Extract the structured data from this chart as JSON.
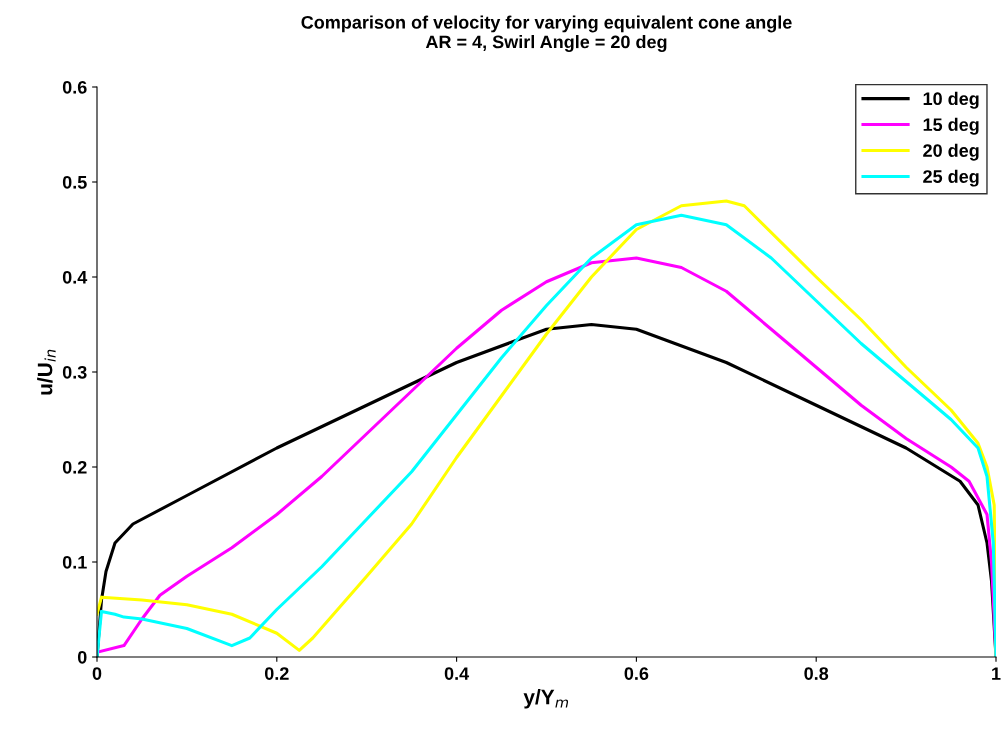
{
  "chart_data": {
    "type": "line",
    "title": "Comparison of velocity for varying equivalent cone angle\nAR = 4, Swirl Angle = 20 deg",
    "xlabel": "y/Y$_{m}$",
    "ylabel": "u/U$_{in}$",
    "xlim": [
      0,
      1
    ],
    "ylim": [
      0,
      0.6
    ],
    "xticks": [
      0,
      0.2,
      0.4,
      0.6,
      0.8,
      1
    ],
    "yticks": [
      0,
      0.1,
      0.2,
      0.3,
      0.4,
      0.5,
      0.6
    ],
    "grid": false,
    "legend": "top right",
    "marker": "none",
    "line_style": "solid",
    "series": [
      {
        "name": "10 deg",
        "color": "#000000",
        "x": [
          0,
          0.005,
          0.01,
          0.02,
          0.04,
          0.1,
          0.2,
          0.3,
          0.4,
          0.5,
          0.55,
          0.6,
          0.7,
          0.8,
          0.9,
          0.96,
          0.98,
          0.99,
          0.995,
          1.0
        ],
        "values": [
          0,
          0.06,
          0.09,
          0.12,
          0.14,
          0.17,
          0.22,
          0.265,
          0.31,
          0.345,
          0.35,
          0.345,
          0.31,
          0.265,
          0.22,
          0.185,
          0.16,
          0.12,
          0.08,
          0
        ]
      },
      {
        "name": "15 deg",
        "color": "#ff00ff",
        "x": [
          0,
          0.03,
          0.05,
          0.07,
          0.1,
          0.15,
          0.2,
          0.25,
          0.3,
          0.35,
          0.4,
          0.45,
          0.5,
          0.55,
          0.6,
          0.65,
          0.7,
          0.75,
          0.8,
          0.85,
          0.9,
          0.95,
          0.97,
          0.99,
          0.995,
          1.0
        ],
        "values": [
          0.005,
          0.012,
          0.04,
          0.065,
          0.085,
          0.115,
          0.15,
          0.19,
          0.235,
          0.28,
          0.325,
          0.365,
          0.395,
          0.415,
          0.42,
          0.41,
          0.385,
          0.345,
          0.305,
          0.265,
          0.23,
          0.2,
          0.185,
          0.15,
          0.1,
          0
        ]
      },
      {
        "name": "20 deg",
        "color": "#ffff00",
        "x": [
          0,
          0.005,
          0.05,
          0.1,
          0.15,
          0.2,
          0.225,
          0.24,
          0.3,
          0.35,
          0.4,
          0.45,
          0.5,
          0.55,
          0.6,
          0.65,
          0.7,
          0.72,
          0.8,
          0.85,
          0.9,
          0.95,
          0.98,
          0.99,
          0.998,
          1.0
        ],
        "values": [
          0.045,
          0.063,
          0.06,
          0.055,
          0.045,
          0.025,
          0.007,
          0.02,
          0.085,
          0.14,
          0.21,
          0.275,
          0.34,
          0.4,
          0.45,
          0.475,
          0.48,
          0.475,
          0.4,
          0.355,
          0.305,
          0.26,
          0.225,
          0.2,
          0.16,
          0
        ]
      },
      {
        "name": "25 deg",
        "color": "#00ffff",
        "x": [
          0,
          0.005,
          0.02,
          0.03,
          0.05,
          0.1,
          0.15,
          0.17,
          0.2,
          0.25,
          0.3,
          0.35,
          0.4,
          0.45,
          0.5,
          0.55,
          0.6,
          0.65,
          0.7,
          0.75,
          0.8,
          0.85,
          0.9,
          0.95,
          0.98,
          0.99,
          0.997,
          1.0
        ],
        "values": [
          0,
          0.048,
          0.045,
          0.042,
          0.04,
          0.03,
          0.012,
          0.02,
          0.05,
          0.095,
          0.145,
          0.195,
          0.255,
          0.315,
          0.37,
          0.42,
          0.455,
          0.465,
          0.455,
          0.42,
          0.375,
          0.33,
          0.29,
          0.25,
          0.22,
          0.19,
          0.12,
          0
        ]
      }
    ]
  }
}
